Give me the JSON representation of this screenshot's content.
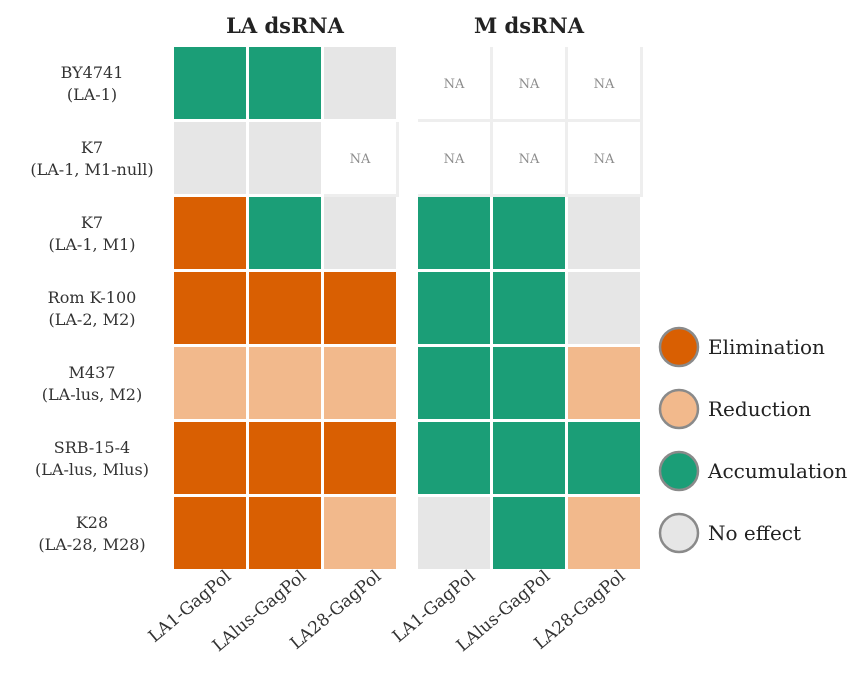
{
  "chart_data": {
    "type": "heatmap",
    "panels": [
      {
        "title": "LA dsRNA",
        "columns": [
          "LA1-GagPol",
          "LAlus-GagPol",
          "LA28-GagPol"
        ],
        "cells": [
          [
            "Accumulation",
            "Accumulation",
            "No effect"
          ],
          [
            "No effect",
            "No effect",
            "NA"
          ],
          [
            "Elimination",
            "Accumulation",
            "No effect"
          ],
          [
            "Elimination",
            "Elimination",
            "Elimination"
          ],
          [
            "Reduction",
            "Reduction",
            "Reduction"
          ],
          [
            "Elimination",
            "Elimination",
            "Elimination"
          ],
          [
            "Elimination",
            "Elimination",
            "Reduction"
          ]
        ]
      },
      {
        "title": "M dsRNA",
        "columns": [
          "LA1-GagPol",
          "LAlus-GagPol",
          "LA28-GagPol"
        ],
        "cells": [
          [
            "NA",
            "NA",
            "NA"
          ],
          [
            "NA",
            "NA",
            "NA"
          ],
          [
            "Accumulation",
            "Accumulation",
            "No effect"
          ],
          [
            "Accumulation",
            "Accumulation",
            "No effect"
          ],
          [
            "Accumulation",
            "Accumulation",
            "Reduction"
          ],
          [
            "Accumulation",
            "Accumulation",
            "Accumulation"
          ],
          [
            "No effect",
            "Accumulation",
            "Reduction"
          ]
        ]
      }
    ],
    "rows": [
      {
        "name": "BY4741",
        "sub": "(LA-1)"
      },
      {
        "name": "K7",
        "sub": "(LA-1, M1-null)"
      },
      {
        "name": "K7",
        "sub": "(LA-1, M1)"
      },
      {
        "name": "Rom K-100",
        "sub": "(LA-2, M2)"
      },
      {
        "name": "M437",
        "sub": "(LA-lus, M2)"
      },
      {
        "name": "SRB-15-4",
        "sub": "(LA-lus, Mlus)"
      },
      {
        "name": "K28",
        "sub": "(LA-28, M28)"
      }
    ],
    "na_text": "NA",
    "legend": [
      {
        "label": "Elimination",
        "color": "#d95f02"
      },
      {
        "label": "Reduction",
        "color": "#f2b98c"
      },
      {
        "label": "Accumulation",
        "color": "#1b9e77"
      },
      {
        "label": "No effect",
        "color": "#e6e6e6"
      }
    ],
    "legend_placement": "right",
    "na_color": "#ffffff",
    "grid_line_color": "#eeeeee"
  }
}
